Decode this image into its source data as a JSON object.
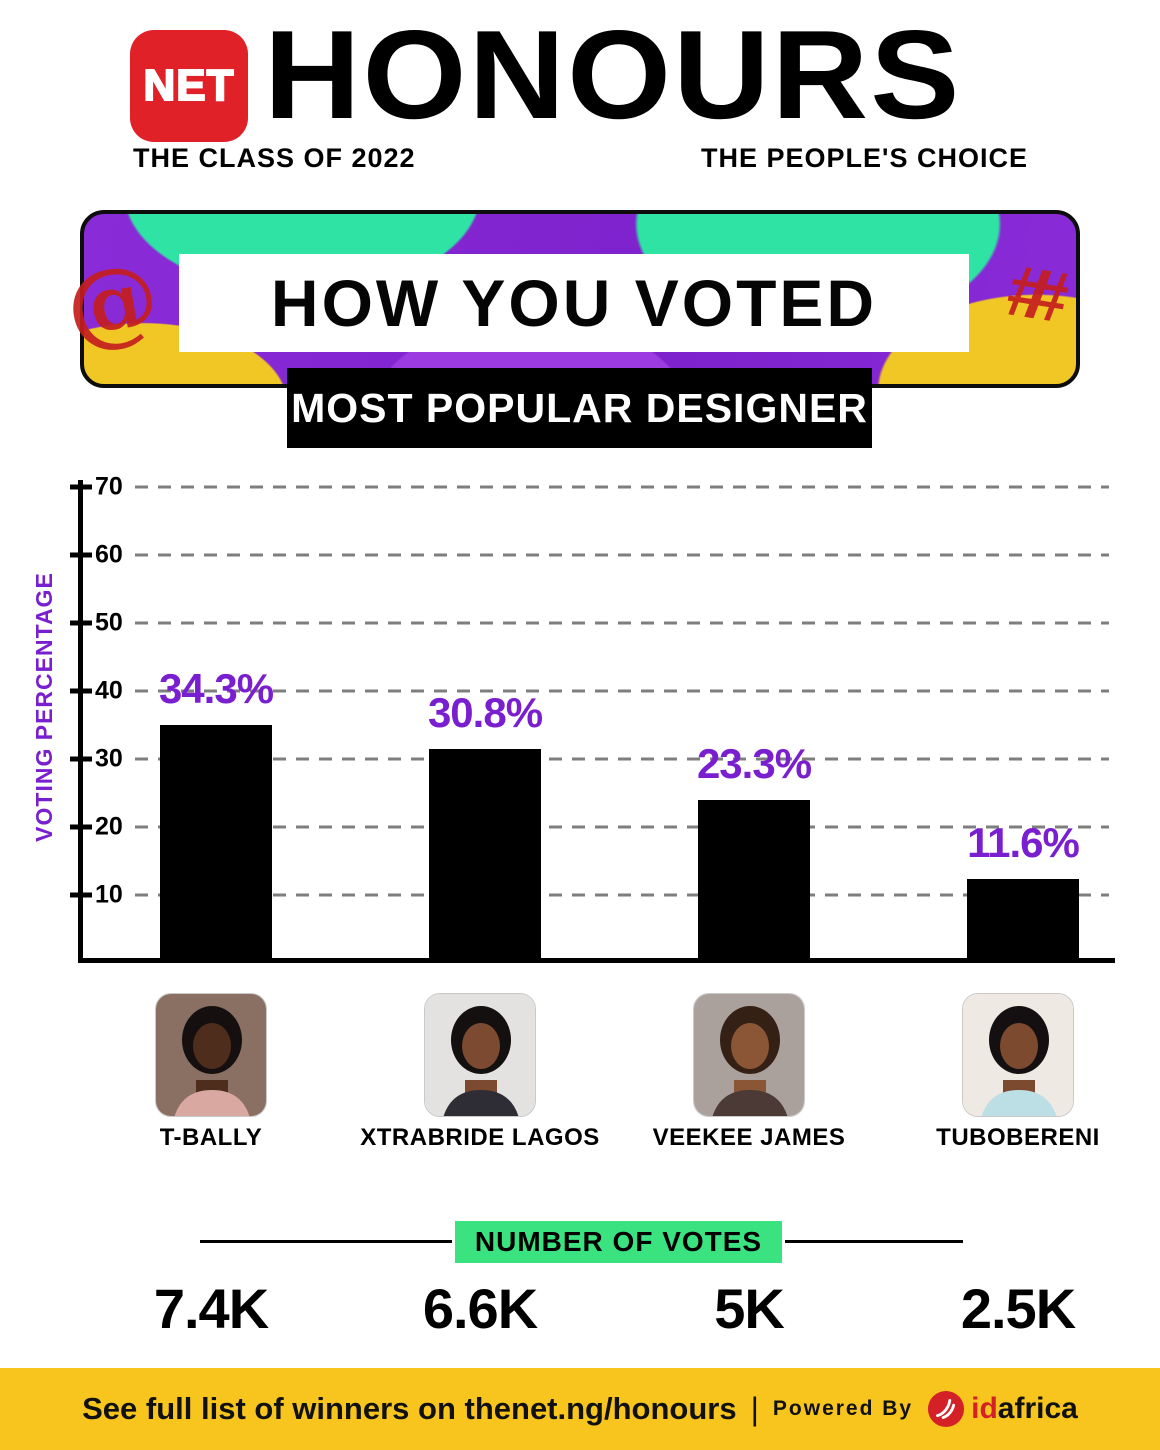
{
  "header": {
    "logo_text": "NET",
    "title": "HONOURS",
    "subtitle_left": "THE CLASS OF 2022",
    "subtitle_right": "THE PEOPLE'S CHOICE"
  },
  "banner": {
    "title": "HOW YOU VOTED",
    "scribble_left": "@",
    "scribble_right": "##"
  },
  "chart_data": {
    "type": "bar",
    "title": "MOST POPULAR DESIGNER",
    "ylabel": "VOTING PERCENTAGE",
    "ylim": [
      0,
      70
    ],
    "yticks": [
      10,
      20,
      30,
      40,
      50,
      60,
      70
    ],
    "grid": "horizontal-dashed",
    "legend": "none",
    "categories": [
      "T-BALLY",
      "XTRABRIDE LAGOS",
      "VEEKEE JAMES",
      "TUBOBERENI"
    ],
    "values": [
      34.3,
      30.8,
      23.3,
      11.6
    ],
    "value_labels": [
      "34.3%",
      "30.8%",
      "23.3%",
      "11.6%"
    ],
    "votes": [
      "7.4K",
      "6.6K",
      "5K",
      "2.5K"
    ],
    "bar_color": "#000000",
    "value_label_color": "#7a1fd0"
  },
  "votes_section": {
    "title": "NUMBER OF VOTES"
  },
  "footer": {
    "text": "See full list of winners on thenet.ng/honours",
    "separator": "|",
    "powered_by": "Powered By",
    "brand": {
      "id": "id",
      "africa": "africa"
    }
  },
  "portraits": [
    {
      "bg": "#8a7062",
      "hair": "#15100f",
      "skin": "#4e2d1d",
      "top": "#d9a8a1"
    },
    {
      "bg": "#e4e2e0",
      "hair": "#14100f",
      "skin": "#7b4a30",
      "top": "#2e2d35"
    },
    {
      "bg": "#aaa19c",
      "hair": "#352015",
      "skin": "#8a5636",
      "top": "#4b3a35"
    },
    {
      "bg": "#efe9e4",
      "hair": "#141011",
      "skin": "#7c4a2e",
      "top": "#bcdfe6"
    }
  ],
  "colors": {
    "accent_purple": "#7a1fd0",
    "brand_red": "#e02128",
    "banner_purple": "#8a2bd8",
    "banner_green": "#2fe3a4",
    "banner_yellow": "#f0c724",
    "votes_green": "#3be380",
    "footer_yellow": "#f7c51d",
    "scribble_red": "#c41f1f",
    "bar_black": "#000000"
  }
}
